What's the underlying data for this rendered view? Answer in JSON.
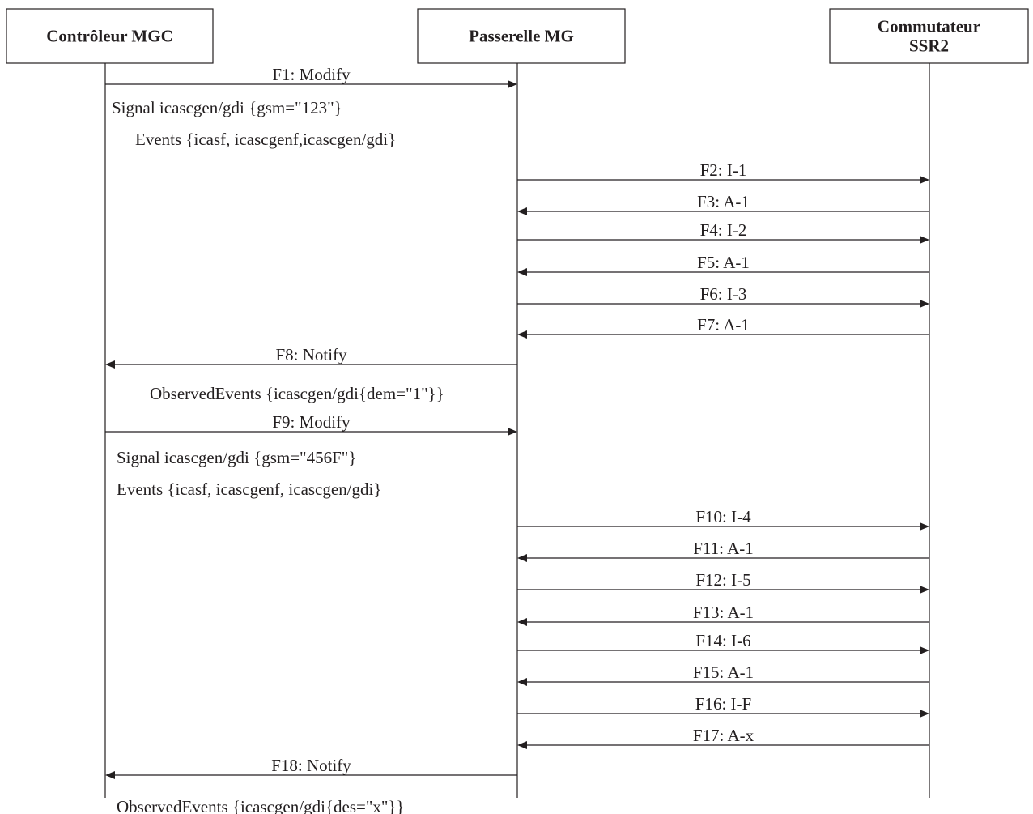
{
  "participants": [
    {
      "id": "mgc",
      "name_lines": [
        "Contrôleur MGC"
      ]
    },
    {
      "id": "mg",
      "name_lines": [
        "Passerelle MG"
      ]
    },
    {
      "id": "ssr2",
      "name_lines": [
        "Commutateur",
        "SSR2"
      ]
    }
  ],
  "messages": [
    {
      "from": "mgc",
      "to": "mg",
      "label": "F1: Modify"
    },
    {
      "from": "mg",
      "to": "ssr2",
      "label": "F2: I-1"
    },
    {
      "from": "ssr2",
      "to": "mg",
      "label": "F3: A-1"
    },
    {
      "from": "mg",
      "to": "ssr2",
      "label": "F4: I-2"
    },
    {
      "from": "ssr2",
      "to": "mg",
      "label": "F5: A-1"
    },
    {
      "from": "mg",
      "to": "ssr2",
      "label": "F6: I-3"
    },
    {
      "from": "ssr2",
      "to": "mg",
      "label": "F7: A-1"
    },
    {
      "from": "mg",
      "to": "mgc",
      "label": "F8: Notify"
    },
    {
      "from": "mgc",
      "to": "mg",
      "label": "F9: Modify"
    },
    {
      "from": "mg",
      "to": "ssr2",
      "label": "F10: I-4"
    },
    {
      "from": "ssr2",
      "to": "mg",
      "label": "F11: A-1"
    },
    {
      "from": "mg",
      "to": "ssr2",
      "label": "F12: I-5"
    },
    {
      "from": "ssr2",
      "to": "mg",
      "label": "F13: A-1"
    },
    {
      "from": "mg",
      "to": "ssr2",
      "label": "F14: I-6"
    },
    {
      "from": "ssr2",
      "to": "mg",
      "label": "F15: A-1"
    },
    {
      "from": "mg",
      "to": "ssr2",
      "label": "F16: I-F"
    },
    {
      "from": "ssr2",
      "to": "mg",
      "label": "F17: A-x"
    },
    {
      "from": "mg",
      "to": "mgc",
      "label": "F18: Notify"
    }
  ],
  "notes": [
    "Signal icascgen/gdi {gsm=\"123\"}",
    "Events {icasf, icascgenf,icascgen/gdi}",
    "ObservedEvents {icascgen/gdi{dem=\"1\"}}",
    "Signal icascgen/gdi {gsm=\"456F\"}",
    "Events {icasf, icascgenf, icascgen/gdi}",
    "ObservedEvents {icascgen/gdi{des=\"x\"}}"
  ]
}
